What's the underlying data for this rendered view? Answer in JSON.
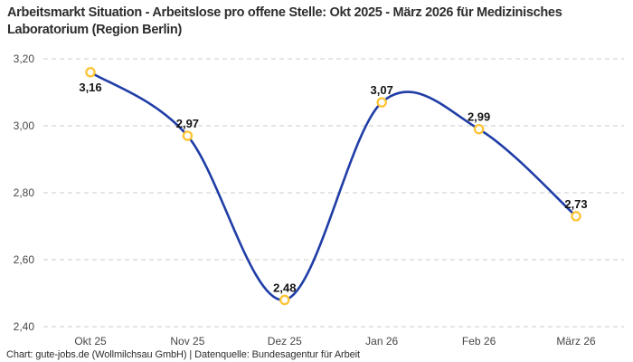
{
  "header": {
    "title": "Arbeitsmarkt Situation - Arbeitslose pro offene Stelle: Okt 2025 - März 2026 für Medizinisches Laboratorium (Region Berlin)"
  },
  "footer": {
    "attribution": "Chart: gute-jobs.de (Wollmilchsau GmbH) | Datenquelle: Bundesagentur für Arbeit"
  },
  "chart_data": {
    "type": "line",
    "title": "Arbeitsmarkt Situation - Arbeitslose pro offene Stelle: Okt 2025 - März 2026 für Medizinisches Laboratorium (Region Berlin)",
    "categories": [
      "Okt 25",
      "Nov 25",
      "Dez 25",
      "Jan 26",
      "Feb 26",
      "März 26"
    ],
    "values": [
      3.16,
      2.97,
      2.48,
      3.07,
      2.99,
      2.73
    ],
    "value_labels": [
      "3,16",
      "2,97",
      "2,48",
      "3,07",
      "2,99",
      "2,73"
    ],
    "label_position": [
      "below",
      "above",
      "above",
      "above",
      "above",
      "above"
    ],
    "xlabel": "",
    "ylabel": "",
    "ylim": [
      2.4,
      3.2
    ],
    "yticks": {
      "values": [
        3.2,
        3.0,
        2.8,
        2.6,
        2.4
      ],
      "labels": [
        "3,20",
        "3,00",
        "2,80",
        "2,60",
        "2,40"
      ]
    },
    "grid": "horizontal-dashed",
    "legend_position": "none",
    "interpolation": "smooth-spline",
    "colors": {
      "line": "#1f3da6",
      "marker_stroke": "#fdc435",
      "marker_fill": "#ffffff",
      "gridline": "#cbcbcb",
      "axis_tick_text": "#474747",
      "point_label_text": "#141414",
      "title_text": "#2d2d2d",
      "background": "#ffffff"
    }
  }
}
